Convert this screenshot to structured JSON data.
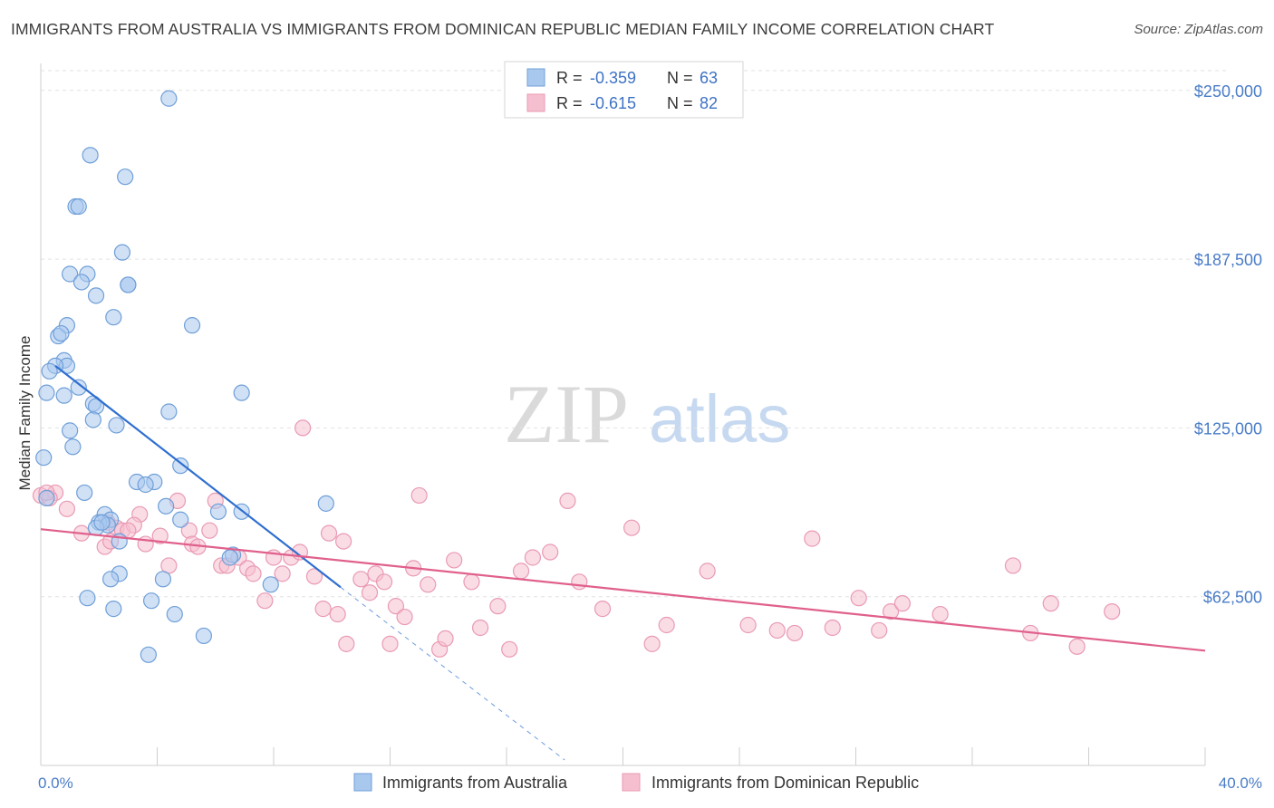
{
  "title": "IMMIGRANTS FROM AUSTRALIA VS IMMIGRANTS FROM DOMINICAN REPUBLIC MEDIAN FAMILY INCOME CORRELATION CHART",
  "source": "Source: ZipAtlas.com",
  "watermark": {
    "zip": "ZIP",
    "atlas": "atlas"
  },
  "colors": {
    "blue_fill": "#a9c8ee",
    "blue_stroke": "#6f9fd8",
    "blue_line": "#2f6fd0",
    "pink_fill": "#f6bfd0",
    "pink_stroke": "#e99ab4",
    "pink_line": "#e0608c",
    "tick_text": "#4a7cc7",
    "grid": "#e2e2e2"
  },
  "legend": {
    "rows": [
      {
        "r_label": "R = ",
        "r_value": "-0.359",
        "n_label": "N = ",
        "n_value": "63",
        "series": "blue"
      },
      {
        "r_label": "R = ",
        "r_value": "-0.615",
        "n_label": "N = ",
        "n_value": "82",
        "series": "pink"
      }
    ]
  },
  "chart_data": {
    "type": "scatter",
    "title": "IMMIGRANTS FROM AUSTRALIA VS IMMIGRANTS FROM DOMINICAN REPUBLIC MEDIAN FAMILY INCOME CORRELATION CHART",
    "xlabel": "",
    "ylabel": "Median Family Income",
    "xlim": [
      0,
      40
    ],
    "ylim": [
      0,
      260000
    ],
    "x_tick_labels": [
      "0.0%",
      "40.0%"
    ],
    "y_ticks": [
      62500,
      125000,
      187500,
      250000
    ],
    "y_tick_labels": [
      "$62,500",
      "$125,000",
      "$187,500",
      "$250,000"
    ],
    "grid": "horizontal dashed",
    "legend_position": "top-center",
    "series": [
      {
        "name": "Immigrants from Australia",
        "color": "blue",
        "r": -0.359,
        "n": 63,
        "trend": {
          "x": [
            0.5,
            10.3
          ],
          "y": [
            148000,
            66000
          ],
          "dashed_extension_to": [
            18.0,
            2000
          ]
        },
        "points": [
          [
            4.4,
            247000
          ],
          [
            1.7,
            226000
          ],
          [
            2.9,
            218000
          ],
          [
            1.2,
            207000
          ],
          [
            1.3,
            207000
          ],
          [
            2.8,
            190000
          ],
          [
            1.0,
            182000
          ],
          [
            1.6,
            182000
          ],
          [
            1.4,
            179000
          ],
          [
            3.0,
            178000
          ],
          [
            3.0,
            178000
          ],
          [
            1.9,
            174000
          ],
          [
            2.5,
            166000
          ],
          [
            5.2,
            163000
          ],
          [
            0.9,
            163000
          ],
          [
            0.6,
            159000
          ],
          [
            0.7,
            160000
          ],
          [
            0.8,
            150000
          ],
          [
            0.9,
            148000
          ],
          [
            0.5,
            148000
          ],
          [
            0.3,
            146000
          ],
          [
            1.3,
            140000
          ],
          [
            0.2,
            138000
          ],
          [
            0.8,
            137000
          ],
          [
            6.9,
            138000
          ],
          [
            1.8,
            134000
          ],
          [
            1.9,
            133000
          ],
          [
            4.4,
            131000
          ],
          [
            1.8,
            128000
          ],
          [
            2.6,
            126000
          ],
          [
            1.0,
            124000
          ],
          [
            1.1,
            118000
          ],
          [
            0.1,
            114000
          ],
          [
            4.8,
            111000
          ],
          [
            3.3,
            105000
          ],
          [
            3.9,
            105000
          ],
          [
            3.6,
            104000
          ],
          [
            1.5,
            101000
          ],
          [
            0.2,
            99000
          ],
          [
            9.8,
            97000
          ],
          [
            4.3,
            96000
          ],
          [
            6.9,
            94000
          ],
          [
            2.2,
            93000
          ],
          [
            4.8,
            91000
          ],
          [
            2.4,
            91000
          ],
          [
            2.0,
            90000
          ],
          [
            2.3,
            89000
          ],
          [
            1.9,
            88000
          ],
          [
            2.7,
            83000
          ],
          [
            6.1,
            94000
          ],
          [
            6.6,
            78000
          ],
          [
            6.5,
            77000
          ],
          [
            2.7,
            71000
          ],
          [
            4.2,
            69000
          ],
          [
            2.4,
            69000
          ],
          [
            7.9,
            67000
          ],
          [
            1.6,
            62000
          ],
          [
            3.8,
            61000
          ],
          [
            2.5,
            58000
          ],
          [
            4.6,
            56000
          ],
          [
            5.6,
            48000
          ],
          [
            3.7,
            41000
          ],
          [
            2.1,
            90000
          ]
        ]
      },
      {
        "name": "Immigrants from Dominican Republic",
        "color": "pink",
        "r": -0.615,
        "n": 82,
        "trend": {
          "x": [
            0.0,
            40.0
          ],
          "y": [
            87500,
            42500
          ]
        },
        "points": [
          [
            0.0,
            100000
          ],
          [
            0.5,
            101000
          ],
          [
            0.3,
            99000
          ],
          [
            0.9,
            95000
          ],
          [
            1.4,
            86000
          ],
          [
            2.3,
            90000
          ],
          [
            2.6,
            88000
          ],
          [
            2.8,
            87000
          ],
          [
            3.4,
            93000
          ],
          [
            3.2,
            89000
          ],
          [
            3.0,
            87000
          ],
          [
            2.2,
            81000
          ],
          [
            2.4,
            83000
          ],
          [
            3.6,
            82000
          ],
          [
            4.1,
            85000
          ],
          [
            4.4,
            74000
          ],
          [
            4.7,
            98000
          ],
          [
            5.1,
            87000
          ],
          [
            5.2,
            82000
          ],
          [
            5.4,
            81000
          ],
          [
            5.8,
            87000
          ],
          [
            6.0,
            98000
          ],
          [
            6.2,
            74000
          ],
          [
            6.4,
            74000
          ],
          [
            6.8,
            77000
          ],
          [
            7.1,
            73000
          ],
          [
            7.3,
            71000
          ],
          [
            7.7,
            61000
          ],
          [
            8.0,
            77000
          ],
          [
            8.3,
            71000
          ],
          [
            8.6,
            77000
          ],
          [
            8.9,
            79000
          ],
          [
            9.0,
            125000
          ],
          [
            9.4,
            70000
          ],
          [
            9.7,
            58000
          ],
          [
            9.9,
            86000
          ],
          [
            10.2,
            56000
          ],
          [
            10.4,
            83000
          ],
          [
            10.5,
            45000
          ],
          [
            11.0,
            69000
          ],
          [
            11.3,
            64000
          ],
          [
            11.5,
            71000
          ],
          [
            11.8,
            68000
          ],
          [
            12.0,
            45000
          ],
          [
            12.2,
            59000
          ],
          [
            12.5,
            55000
          ],
          [
            12.8,
            73000
          ],
          [
            13.0,
            100000
          ],
          [
            13.3,
            67000
          ],
          [
            13.7,
            43000
          ],
          [
            13.9,
            47000
          ],
          [
            14.2,
            76000
          ],
          [
            14.8,
            68000
          ],
          [
            15.1,
            51000
          ],
          [
            15.7,
            59000
          ],
          [
            16.1,
            43000
          ],
          [
            16.5,
            72000
          ],
          [
            16.9,
            77000
          ],
          [
            17.5,
            79000
          ],
          [
            18.1,
            98000
          ],
          [
            18.5,
            68000
          ],
          [
            19.3,
            58000
          ],
          [
            20.3,
            88000
          ],
          [
            21.0,
            45000
          ],
          [
            21.5,
            52000
          ],
          [
            22.9,
            72000
          ],
          [
            24.3,
            52000
          ],
          [
            25.3,
            50000
          ],
          [
            25.9,
            49000
          ],
          [
            26.5,
            84000
          ],
          [
            27.2,
            51000
          ],
          [
            28.1,
            62000
          ],
          [
            28.8,
            50000
          ],
          [
            29.2,
            57000
          ],
          [
            29.6,
            60000
          ],
          [
            30.9,
            56000
          ],
          [
            33.4,
            74000
          ],
          [
            34.0,
            49000
          ],
          [
            34.7,
            60000
          ],
          [
            35.6,
            44000
          ],
          [
            36.8,
            57000
          ],
          [
            0.2,
            101000
          ]
        ]
      }
    ]
  }
}
